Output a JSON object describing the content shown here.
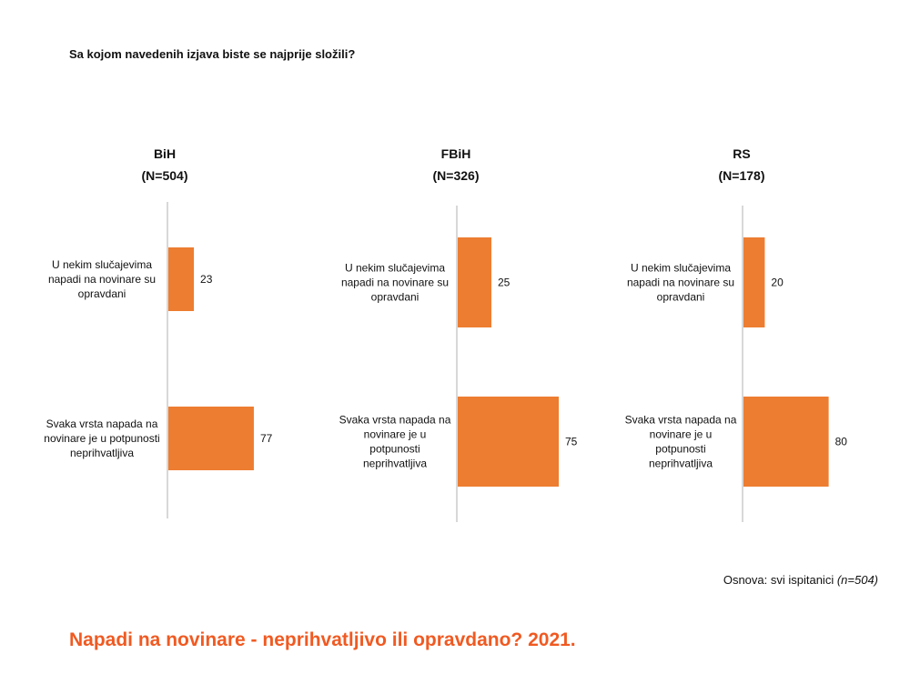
{
  "question": "Sa kojom navedenih izjava biste se najprije složili?",
  "colors": {
    "bar": "#ED7D31",
    "axis": "#BFBFBF",
    "footer": "#F05A22"
  },
  "chart_data": [
    {
      "type": "bar",
      "orientation": "horizontal",
      "title": "BiH",
      "subtitle": "(N=504)",
      "categories": [
        [
          "U nekim slučajevima",
          "napadi na novinare su",
          "opravdani"
        ],
        [
          "Svaka vrsta napada na",
          "novinare je u potpunosti",
          "neprihvatljiva"
        ]
      ],
      "values": [
        23,
        77
      ]
    },
    {
      "type": "bar",
      "orientation": "horizontal",
      "title": "FBiH",
      "subtitle": "(N=326)",
      "categories": [
        [
          "U nekim slučajevima",
          "napadi na novinare su",
          "opravdani"
        ],
        [
          "Svaka vrsta napada na",
          "novinare je u",
          "potpunosti",
          "neprihvatljiva"
        ]
      ],
      "values": [
        25,
        75
      ]
    },
    {
      "type": "bar",
      "orientation": "horizontal",
      "title": "RS",
      "subtitle": "(N=178)",
      "categories": [
        [
          "U nekim slučajevima",
          "napadi na novinare su",
          "opravdani"
        ],
        [
          "Svaka vrsta napada na",
          "novinare je u",
          "potpunosti",
          "neprihvatljiva"
        ]
      ],
      "values": [
        20,
        80
      ]
    }
  ],
  "basis": {
    "text": "Osnova: svi ispitanici ",
    "italic": "(n=504)"
  },
  "footer_title": "Napadi na novinare - neprihvatljivo ili opravdano? 2021."
}
